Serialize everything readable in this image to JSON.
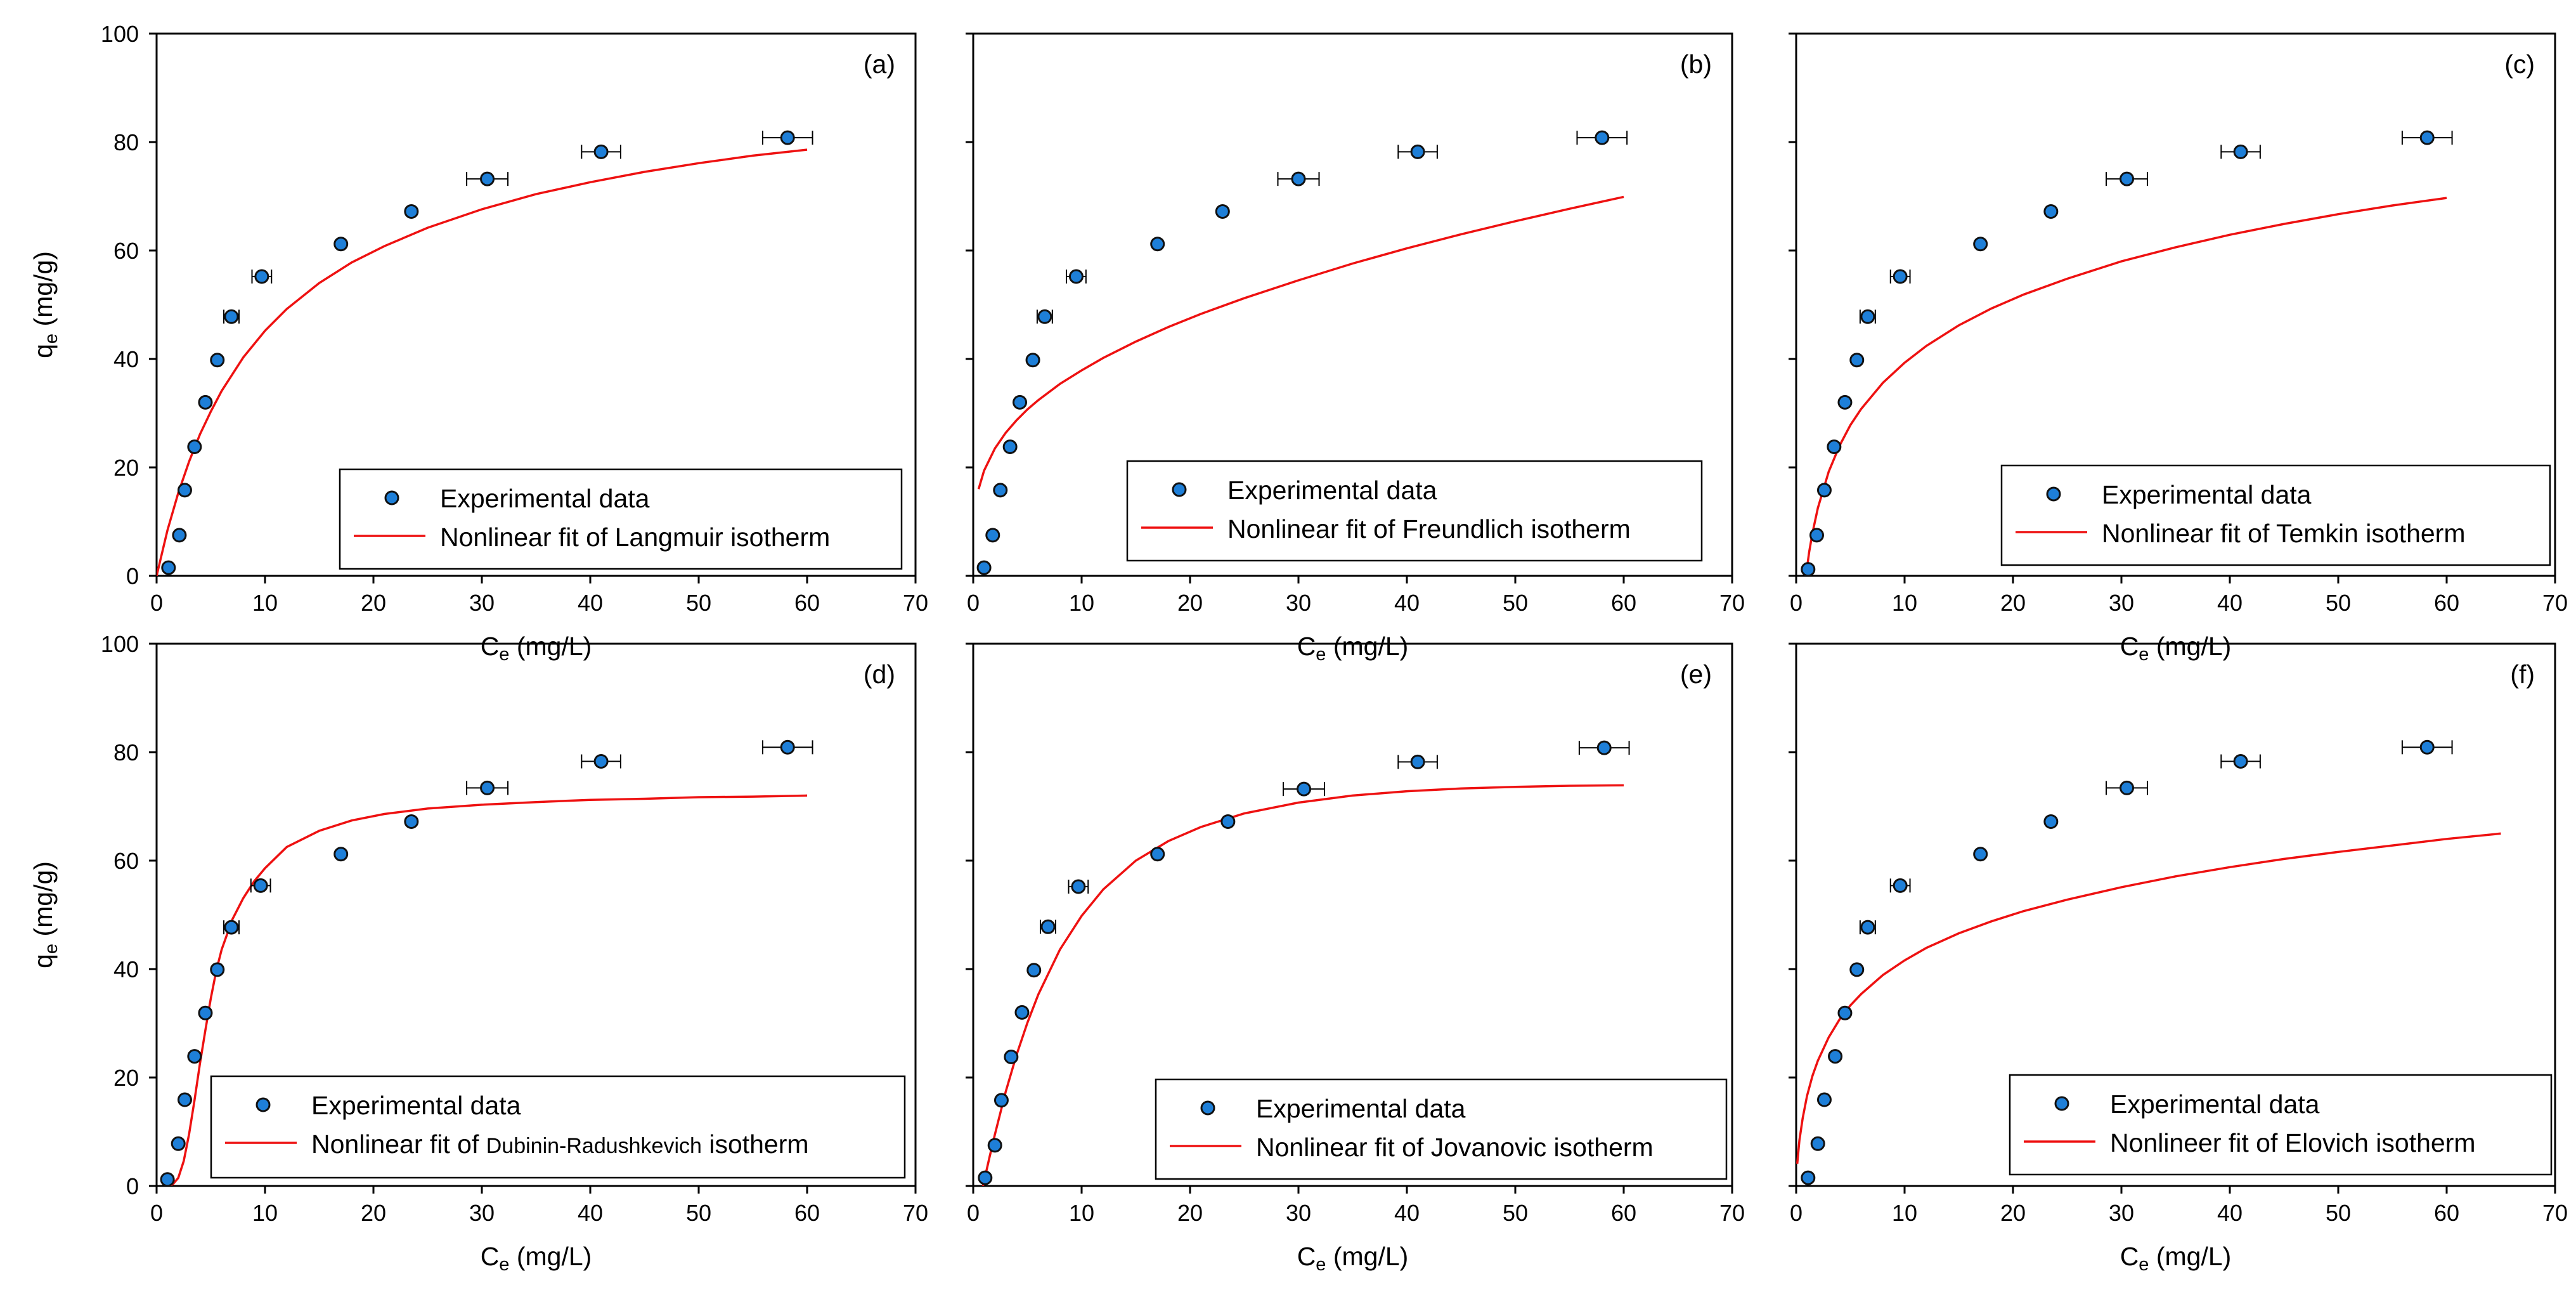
{
  "chart_data": [
    {
      "panel": "(a)",
      "type": "scatter",
      "xlabel": "C",
      "xlabel_sub": "e",
      "xlabel_unit": " (mg/L)",
      "ylabel": "q",
      "ylabel_sub": "e",
      "ylabel_unit": " (mg/g)",
      "xlim": [
        0,
        70
      ],
      "ylim": [
        0,
        100
      ],
      "xticks": [
        "0",
        "10",
        "20",
        "30",
        "40",
        "50",
        "60",
        "70"
      ],
      "yticks": [
        "0",
        "20",
        "40",
        "60",
        "80",
        "100"
      ],
      "series": [
        {
          "name": "Experimental data",
          "type": "scatter",
          "x": [
            1.1,
            2.1,
            2.6,
            3.5,
            4.5,
            5.6,
            6.9,
            9.7,
            17.0,
            23.5,
            30.5,
            41.0,
            58.2
          ],
          "y": [
            1.5,
            7.5,
            15.8,
            23.8,
            32.0,
            39.8,
            47.8,
            55.2,
            61.2,
            67.2,
            73.2,
            78.2,
            80.8
          ],
          "xerr": [
            0.2,
            0.2,
            0.2,
            0.3,
            0.3,
            0.4,
            0.7,
            0.9,
            0.5,
            0.3,
            1.9,
            1.8,
            2.3
          ]
        },
        {
          "name": "Nonlinear fit of Langmuir isotherm",
          "type": "line",
          "x": [
            0,
            1,
            2,
            3,
            4,
            5,
            6,
            8,
            10,
            12,
            15,
            18,
            21,
            25,
            30,
            35,
            40,
            45,
            50,
            55,
            60
          ],
          "y": [
            0,
            8.4,
            15.3,
            21.1,
            26.1,
            30.3,
            34.1,
            40.3,
            45.2,
            49.2,
            54.0,
            57.8,
            60.8,
            64.2,
            67.6,
            70.4,
            72.6,
            74.5,
            76.1,
            77.5,
            78.6
          ]
        }
      ]
    },
    {
      "panel": "(b)",
      "type": "scatter",
      "xlabel": "C",
      "xlabel_sub": "e",
      "xlabel_unit": " (mg/L)",
      "xlim": [
        0,
        70
      ],
      "ylim": [
        0,
        100
      ],
      "xticks": [
        "0",
        "10",
        "20",
        "30",
        "40",
        "50",
        "60",
        "70"
      ],
      "series": [
        {
          "name": "Experimental data",
          "type": "scatter",
          "x": [
            1.0,
            1.8,
            2.5,
            3.4,
            4.3,
            5.5,
            6.6,
            9.5,
            17.0,
            23.0,
            30.0,
            41.0,
            58.0
          ],
          "y": [
            1.5,
            7.5,
            15.8,
            23.8,
            32.0,
            39.8,
            47.8,
            55.2,
            61.2,
            67.2,
            73.2,
            78.2,
            80.8
          ],
          "xerr": [
            0.2,
            0.2,
            0.2,
            0.3,
            0.3,
            0.4,
            0.7,
            0.9,
            0.5,
            0.3,
            1.9,
            1.8,
            2.3
          ]
        },
        {
          "name": "Nonlinear fit of Freundlich isotherm",
          "type": "line",
          "x": [
            0.5,
            1,
            2,
            3,
            4,
            5,
            6,
            8,
            10,
            12,
            15,
            18,
            21,
            25,
            30,
            35,
            40,
            45,
            50,
            55,
            60
          ],
          "y": [
            16.0,
            19.4,
            23.5,
            26.4,
            28.7,
            30.7,
            32.4,
            35.4,
            37.9,
            40.2,
            43.2,
            45.9,
            48.3,
            51.2,
            54.5,
            57.6,
            60.4,
            63.0,
            65.4,
            67.7,
            69.9
          ]
        }
      ]
    },
    {
      "panel": "(c)",
      "type": "scatter",
      "xlabel": "C",
      "xlabel_sub": "e",
      "xlabel_unit": " (mg/L)",
      "xlim": [
        0,
        70
      ],
      "ylim": [
        0,
        100
      ],
      "xticks": [
        "0",
        "10",
        "20",
        "30",
        "40",
        "50",
        "60",
        "70"
      ],
      "series": [
        {
          "name": "Experimental data",
          "type": "scatter",
          "x": [
            1.1,
            1.9,
            2.6,
            3.5,
            4.5,
            5.6,
            6.6,
            9.6,
            17.0,
            23.5,
            30.5,
            41.0,
            58.2
          ],
          "y": [
            1.2,
            7.5,
            15.8,
            23.8,
            32.0,
            39.8,
            47.8,
            55.2,
            61.2,
            67.2,
            73.2,
            78.2,
            80.8
          ],
          "xerr": [
            0.2,
            0.2,
            0.2,
            0.3,
            0.3,
            0.4,
            0.7,
            0.9,
            0.5,
            0.3,
            1.9,
            1.8,
            2.3
          ]
        },
        {
          "name": "Nonlinear fit of Temkin isotherm",
          "type": "line",
          "x": [
            0.9,
            1.2,
            1.5,
            2,
            3,
            4,
            5,
            6,
            8,
            10,
            12,
            15,
            18,
            21,
            25,
            30,
            35,
            40,
            45,
            50,
            55,
            60
          ],
          "y": [
            0,
            4.4,
            7.9,
            12.5,
            19.2,
            24.0,
            27.8,
            30.8,
            35.6,
            39.3,
            42.4,
            46.2,
            49.3,
            51.9,
            54.8,
            58.0,
            60.6,
            62.9,
            64.9,
            66.7,
            68.3,
            69.7
          ]
        }
      ]
    },
    {
      "panel": "(d)",
      "type": "scatter",
      "xlabel": "C",
      "xlabel_sub": "e",
      "xlabel_unit": " (mg/L)",
      "ylabel": "q",
      "ylabel_sub": "e",
      "ylabel_unit": " (mg/g)",
      "xlim": [
        0,
        70
      ],
      "ylim": [
        0,
        100
      ],
      "xticks": [
        "0",
        "10",
        "20",
        "30",
        "40",
        "50",
        "60",
        "70"
      ],
      "yticks": [
        "0",
        "20",
        "40",
        "60",
        "80",
        "100"
      ],
      "series": [
        {
          "name": "Experimental data",
          "type": "scatter",
          "x": [
            1.0,
            2.0,
            2.6,
            3.5,
            4.5,
            5.6,
            6.9,
            9.6,
            17.0,
            23.5,
            30.5,
            41.0,
            58.2
          ],
          "y": [
            1.2,
            7.8,
            15.9,
            23.9,
            31.9,
            39.9,
            47.7,
            55.4,
            61.2,
            67.2,
            73.4,
            78.3,
            80.9
          ],
          "xerr": [
            0.2,
            0.2,
            0.2,
            0.3,
            0.3,
            0.4,
            0.7,
            0.9,
            0.5,
            0.3,
            1.9,
            1.8,
            2.3
          ]
        },
        {
          "name": "Nonlinear fit of",
          "name_suffix": "Dubinin-Radushkevich",
          "name_end": " isotherm",
          "type": "line",
          "x": [
            1.0,
            1.5,
            2,
            2.5,
            3,
            3.5,
            4,
            4.5,
            5,
            5.5,
            6,
            7,
            8,
            9,
            10,
            12,
            15,
            18,
            21,
            25,
            30,
            35,
            40,
            45,
            50,
            55,
            60
          ],
          "y": [
            0,
            0.3,
            1.5,
            4.6,
            9.6,
            15.9,
            22.6,
            28.7,
            34.6,
            39.7,
            43.6,
            49.2,
            53.1,
            56.2,
            58.6,
            62.5,
            65.5,
            67.4,
            68.6,
            69.6,
            70.3,
            70.8,
            71.2,
            71.4,
            71.7,
            71.8,
            72.0
          ]
        }
      ]
    },
    {
      "panel": "(e)",
      "type": "scatter",
      "xlabel": "C",
      "xlabel_sub": "e",
      "xlabel_unit": " (mg/L)",
      "xlim": [
        0,
        70
      ],
      "ylim": [
        0,
        100
      ],
      "xticks": [
        "0",
        "10",
        "20",
        "30",
        "40",
        "50",
        "60",
        "70"
      ],
      "series": [
        {
          "name": "Experimental data",
          "type": "scatter",
          "x": [
            1.1,
            2.0,
            2.6,
            3.5,
            4.5,
            5.6,
            6.9,
            9.7,
            17.0,
            23.5,
            30.5,
            41.0,
            58.2
          ],
          "y": [
            1.5,
            7.5,
            15.8,
            23.8,
            32.0,
            39.8,
            47.8,
            55.2,
            61.2,
            67.2,
            73.2,
            78.2,
            80.8
          ],
          "xerr": [
            0.2,
            0.2,
            0.2,
            0.3,
            0.3,
            0.4,
            0.7,
            0.9,
            0.5,
            0.3,
            1.9,
            1.8,
            2.3
          ]
        },
        {
          "name": "Nonlinear fit of Jovanovic isotherm",
          "type": "line",
          "x": [
            0.9,
            1.5,
            2,
            3,
            4,
            5,
            6,
            8,
            10,
            12,
            15,
            18,
            21,
            25,
            30,
            35,
            40,
            45,
            50,
            55,
            60
          ],
          "y": [
            0,
            5.3,
            9.5,
            17.4,
            24.2,
            30.1,
            35.3,
            43.6,
            49.8,
            54.7,
            60.0,
            63.6,
            66.2,
            68.7,
            70.7,
            72.0,
            72.8,
            73.3,
            73.6,
            73.8,
            73.9
          ]
        }
      ]
    },
    {
      "panel": "(f)",
      "type": "scatter",
      "xlabel": "C",
      "xlabel_sub": "e",
      "xlabel_unit": " (mg/L)",
      "xlim": [
        0,
        70
      ],
      "ylim": [
        0,
        100
      ],
      "xticks": [
        "0",
        "10",
        "20",
        "30",
        "40",
        "50",
        "60",
        "70"
      ],
      "series": [
        {
          "name": "Experimental data",
          "type": "scatter",
          "x": [
            1.1,
            2.0,
            2.6,
            3.6,
            4.5,
            5.6,
            6.6,
            9.6,
            17.0,
            23.5,
            30.5,
            41.0,
            58.2
          ],
          "y": [
            1.5,
            7.8,
            15.9,
            23.9,
            31.9,
            39.9,
            47.7,
            55.4,
            61.2,
            67.2,
            73.4,
            78.3,
            80.9
          ],
          "xerr": [
            0.2,
            0.2,
            0.2,
            0.3,
            0.3,
            0.4,
            0.7,
            0.9,
            0.5,
            0.3,
            1.9,
            1.8,
            2.3
          ]
        },
        {
          "name": "Nonlineer fit of Elovich isotherm",
          "type": "line",
          "x": [
            0.1,
            0.3,
            0.6,
            1,
            1.5,
            2,
            3,
            4,
            5,
            6,
            8,
            10,
            12,
            15,
            18,
            21,
            25,
            30,
            35,
            40,
            45,
            50,
            55,
            60,
            65
          ],
          "y": [
            4.1,
            8.4,
            12.5,
            16.6,
            20.3,
            23.1,
            27.4,
            30.7,
            33.3,
            35.4,
            38.9,
            41.6,
            43.9,
            46.6,
            48.8,
            50.7,
            52.8,
            55.1,
            57.1,
            58.8,
            60.3,
            61.6,
            62.8,
            64.0,
            65.0
          ]
        }
      ]
    }
  ]
}
